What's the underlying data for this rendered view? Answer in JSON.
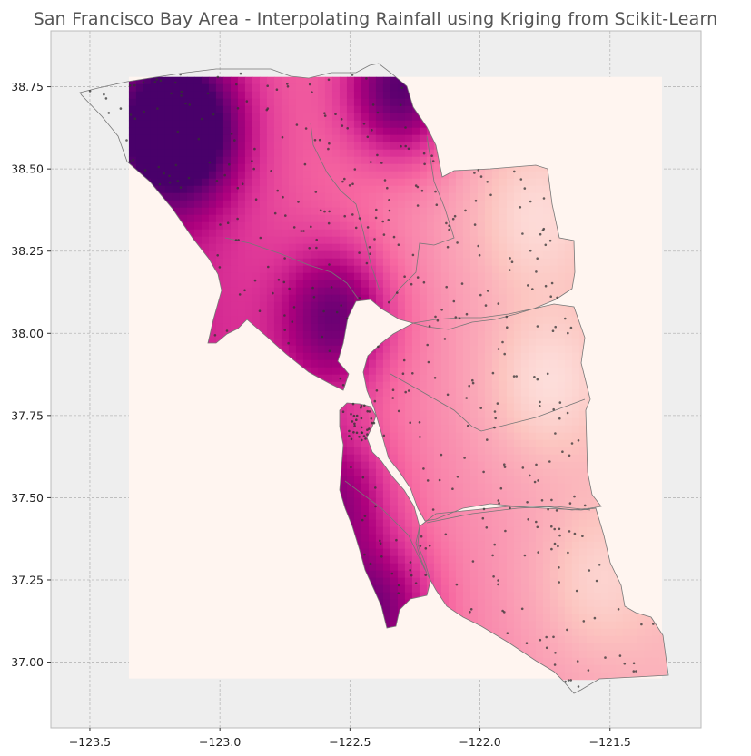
{
  "title": "San Francisco Bay Area - Interpolating Rainfall using Kriging from Scikit-Learn",
  "colors": {
    "axes_face": "#eeeeee",
    "grid": "#b8b8b8",
    "frame": "#bbbbbb",
    "kriging_extent_fill": "#fff5f0",
    "county_boundary": "#777777",
    "station_point": "#333333",
    "colormap": [
      "#fde0dd",
      "#fcc5c0",
      "#fa9fb5",
      "#f768a1",
      "#dd3497",
      "#ae017e",
      "#7a0177",
      "#49006a"
    ]
  },
  "chart_data": {
    "type": "heatmap",
    "title": "San Francisco Bay Area - Interpolating Rainfall using Kriging from Scikit-Learn",
    "xlabel": "",
    "ylabel": "",
    "xlim": [
      -123.65,
      -121.15
    ],
    "ylim": [
      36.8,
      38.92
    ],
    "x_ticks": [
      -123.5,
      -123.0,
      -122.5,
      -122.0,
      -121.5
    ],
    "x_tick_labels": [
      "−123.5",
      "−123.0",
      "−122.5",
      "−122.0",
      "−121.5"
    ],
    "y_ticks": [
      37.0,
      37.25,
      37.5,
      37.75,
      38.0,
      38.25,
      38.5,
      38.75
    ],
    "y_tick_labels": [
      "37.00",
      "37.25",
      "37.50",
      "37.75",
      "38.00",
      "38.25",
      "38.50",
      "38.75"
    ],
    "grid": true,
    "colormap_name": "RdPu",
    "kriging_grid_extent": {
      "lon": [
        -123.35,
        -121.3
      ],
      "lat": [
        36.95,
        38.78
      ]
    },
    "rainfall_hotspots": [
      {
        "lon": -123.15,
        "lat": 38.62,
        "intensity": 1.0
      },
      {
        "lon": -122.55,
        "lat": 38.05,
        "intensity": 0.62
      },
      {
        "lon": -122.3,
        "lat": 38.75,
        "intensity": 0.85
      },
      {
        "lon": -122.4,
        "lat": 37.15,
        "intensity": 0.6
      },
      {
        "lon": -122.55,
        "lat": 37.5,
        "intensity": 0.45
      }
    ],
    "rainfall_lows": [
      {
        "lon": -121.75,
        "lat": 37.85,
        "intensity": 0.1
      },
      {
        "lon": -121.8,
        "lat": 38.35,
        "intensity": 0.15
      },
      {
        "lon": -121.55,
        "lat": 37.25,
        "intensity": 0.2
      }
    ]
  }
}
